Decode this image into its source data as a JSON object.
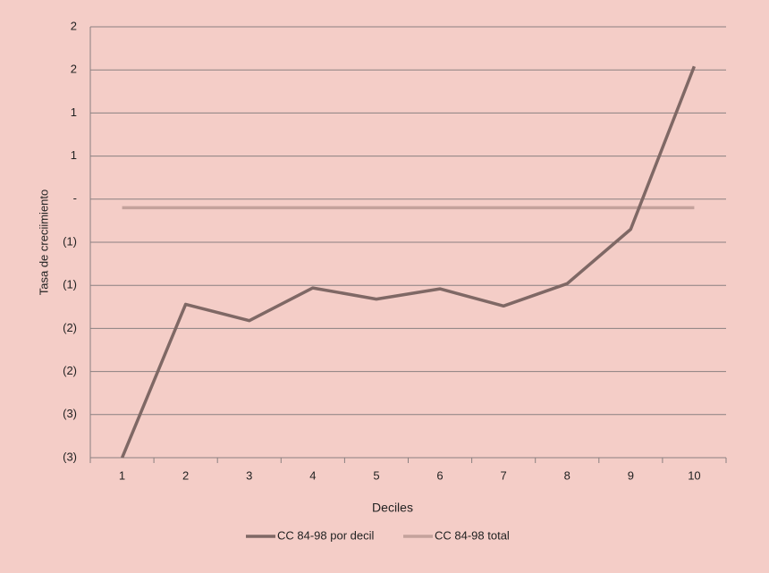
{
  "chart_data": {
    "type": "line",
    "x_label": "Deciles",
    "y_label": "Tasa de creciimiento",
    "categories": [
      "1",
      "2",
      "3",
      "4",
      "5",
      "6",
      "7",
      "8",
      "9",
      "10"
    ],
    "series": [
      {
        "name": "CC 84-98 por decil",
        "color": "#7f6865",
        "values": [
          -3.0,
          -1.22,
          -1.41,
          -1.03,
          -1.16,
          -1.04,
          -1.24,
          -0.98,
          -0.35,
          1.54
        ]
      },
      {
        "name": "CC 84-98 total",
        "color": "#c4a29c",
        "values": [
          -0.1,
          -0.1,
          -0.1,
          -0.1,
          -0.1,
          -0.1,
          -0.1,
          -0.1,
          -0.1,
          -0.1
        ]
      }
    ],
    "ylim": [
      -3.0,
      2.0
    ],
    "yticks": [
      {
        "value": -3.0,
        "label": "(3)"
      },
      {
        "value": -2.5,
        "label": "(3)"
      },
      {
        "value": -2.0,
        "label": "(2)"
      },
      {
        "value": -1.5,
        "label": "(2)"
      },
      {
        "value": -1.0,
        "label": "(1)"
      },
      {
        "value": -0.5,
        "label": "(1)"
      },
      {
        "value": 0,
        "label": "-"
      },
      {
        "value": 0.5,
        "label": "1"
      },
      {
        "value": 1.0,
        "label": "1"
      },
      {
        "value": 1.5,
        "label": "2"
      },
      {
        "value": 2.0,
        "label": "2"
      }
    ],
    "grid": true,
    "legend": "bottom"
  }
}
